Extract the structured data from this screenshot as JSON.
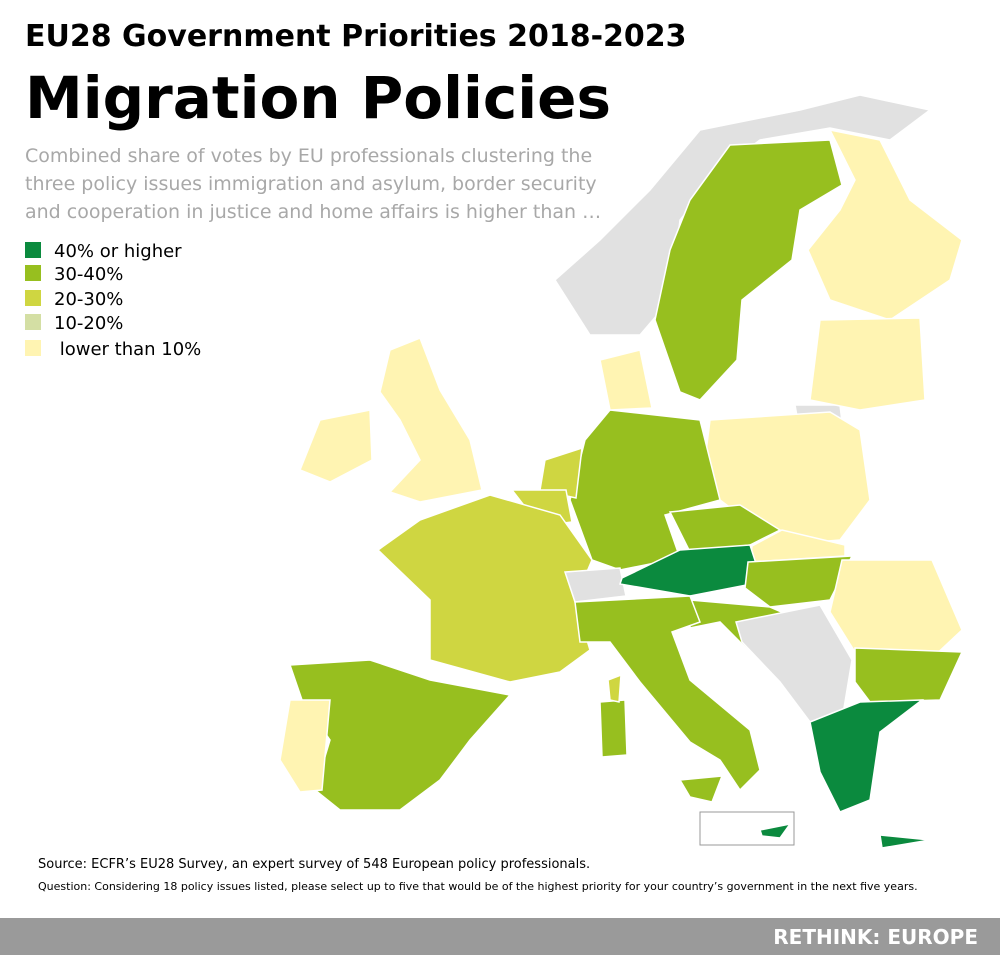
{
  "title": "EU28 Government Priorities 2018-2023",
  "heading": "Migration Policies",
  "description": [
    "Combined share of votes by EU professionals clustering the",
    "three policy issues immigration and asylum, border security",
    "and cooperation in justice and home affairs is higher than …"
  ],
  "legend": [
    {
      "label": "40% or higher",
      "color": "#0b8a3e"
    },
    {
      "label": "30-40%",
      "color": "#97bf1f"
    },
    {
      "label": "20-30%",
      "color": "#cfd641"
    },
    {
      "label": "10-20%",
      "color": "#d4dfa4"
    },
    {
      "label": " lower than 10%",
      "color": "#fff4b2"
    }
  ],
  "source": "Source: ECFR’s EU28 Survey, an expert survey of 548 European policy professionals.",
  "question": "Question: Considering 18 policy issues listed, please select up to five that would be of the highest priority for your country’s government in the next five years.",
  "footer": "RETHINK: EUROPE"
}
